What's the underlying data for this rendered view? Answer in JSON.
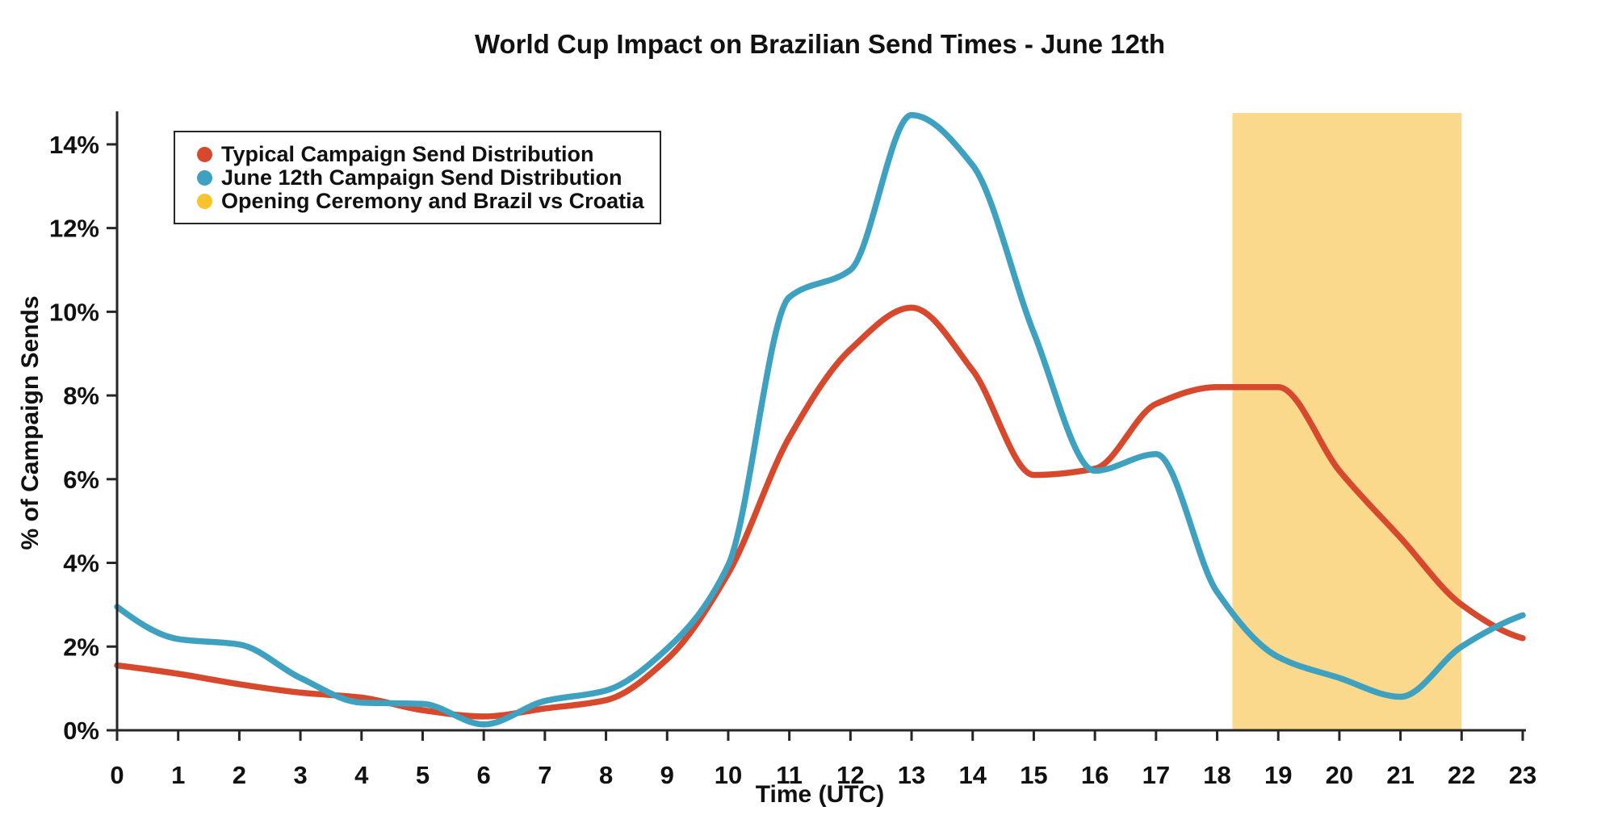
{
  "title": "World Cup Impact on Brazilian Send Times - June 12th",
  "chart_data": {
    "type": "line",
    "title": "World Cup Impact on Brazilian Send Times - June 12th",
    "xlabel": "Time (UTC)",
    "ylabel": "% of Campaign Sends",
    "xlim": [
      0,
      23
    ],
    "ylim": [
      0,
      14.75
    ],
    "grid": false,
    "legend_position": "upper-left",
    "x": [
      0,
      1,
      2,
      3,
      4,
      5,
      6,
      7,
      8,
      9,
      10,
      11,
      12,
      13,
      14,
      15,
      16,
      17,
      18,
      19,
      20,
      21,
      22,
      23
    ],
    "x_tick_labels": [
      "0",
      "1",
      "2",
      "3",
      "4",
      "5",
      "6",
      "7",
      "8",
      "9",
      "10",
      "11",
      "12",
      "13",
      "14",
      "15",
      "16",
      "17",
      "18",
      "19",
      "20",
      "21",
      "22",
      "23"
    ],
    "y_ticks": [
      0,
      2,
      4,
      6,
      8,
      10,
      12,
      14
    ],
    "y_tick_labels": [
      "0%",
      "2%",
      "4%",
      "6%",
      "8%",
      "10%",
      "12%",
      "14%"
    ],
    "series": [
      {
        "name": "Typical Campaign Send Distribution",
        "color": "#D7492D",
        "values": [
          1.55,
          1.35,
          1.1,
          0.9,
          0.78,
          0.48,
          0.33,
          0.52,
          0.72,
          1.7,
          3.75,
          7.0,
          9.1,
          10.1,
          8.6,
          6.1,
          6.25,
          7.8,
          8.2,
          8.2,
          6.2,
          4.6,
          3.0,
          2.2
        ]
      },
      {
        "name": "June 12th Campaign Send Distribution",
        "color": "#3FA1C0",
        "values": [
          2.95,
          2.18,
          2.05,
          1.25,
          0.66,
          0.63,
          0.14,
          0.7,
          0.95,
          1.95,
          3.95,
          10.35,
          11.0,
          14.7,
          13.5,
          9.5,
          6.2,
          6.6,
          3.3,
          1.75,
          1.25,
          0.8,
          2.0,
          2.75
        ]
      }
    ],
    "band": {
      "label": "Opening Ceremony and Brazil vs Croatia",
      "x_start": 18.25,
      "x_end": 22,
      "fill_color": "#FBD98C",
      "legend_dot_color": "#F9C32E"
    },
    "axis_color": "#262626"
  }
}
